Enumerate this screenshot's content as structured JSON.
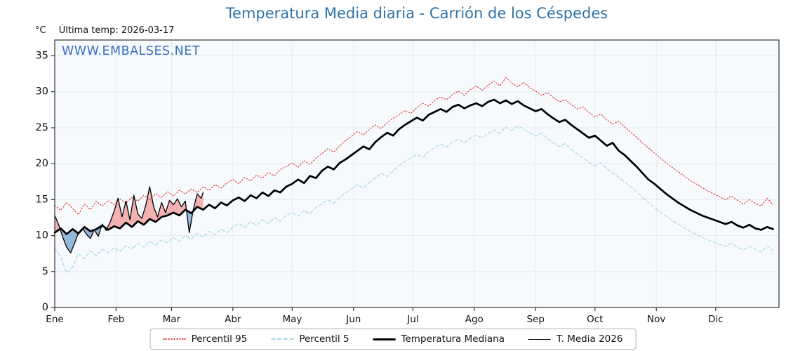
{
  "header": {
    "title": "Temperatura Media diaria - Carrión de los Céspedes",
    "y_unit": "°C",
    "last_temp_label": "Última temp: 2026-03-17",
    "watermark": "WWW.EMBALSES.NET"
  },
  "legend": {
    "items": [
      {
        "label": "Percentil 95",
        "series": "p95"
      },
      {
        "label": "Percentil 5",
        "series": "p5"
      },
      {
        "label": "Temperatura Mediana",
        "series": "median"
      },
      {
        "label": "T. Media 2026",
        "series": "t2026"
      }
    ]
  },
  "chart_data": {
    "type": "line",
    "title": "Temperatura Media diaria - Carrión de los Céspedes",
    "ylabel": "°C",
    "grid": true,
    "legend_position": "bottom",
    "colors": {
      "title": "#2e74a8",
      "watermark": "#3a6fc0",
      "plot_bg": "#f7fafc",
      "grid": "#e3ebf1",
      "axis": "#333333",
      "text": "#111111",
      "fill_above": "#f2a3a3",
      "fill_below": "#82abd4"
    },
    "x_axis": {
      "domain": [
        1,
        367
      ],
      "tick_labels": [
        "Ene",
        "Feb",
        "Mar",
        "Abr",
        "May",
        "Jun",
        "Jul",
        "Ago",
        "Sep",
        "Oct",
        "Nov",
        "Dic"
      ],
      "tick_days": [
        1,
        32,
        60,
        91,
        121,
        152,
        182,
        213,
        244,
        274,
        305,
        335
      ]
    },
    "y_axis": {
      "domain": [
        0,
        37.2
      ],
      "ticks": [
        0,
        5,
        10,
        15,
        20,
        25,
        30,
        35
      ],
      "unit": "°C"
    },
    "sample_days": [
      1,
      4,
      7,
      10,
      13,
      16,
      19,
      22,
      25,
      28,
      31,
      34,
      37,
      40,
      43,
      46,
      49,
      52,
      55,
      58,
      61,
      64,
      67,
      70,
      73,
      76,
      79,
      82,
      85,
      88,
      91,
      94,
      97,
      100,
      103,
      106,
      109,
      112,
      115,
      118,
      121,
      124,
      127,
      130,
      133,
      136,
      139,
      142,
      145,
      148,
      151,
      154,
      157,
      160,
      163,
      166,
      169,
      172,
      175,
      178,
      181,
      184,
      187,
      190,
      193,
      196,
      199,
      202,
      205,
      208,
      211,
      214,
      217,
      220,
      223,
      226,
      229,
      232,
      235,
      238,
      241,
      244,
      247,
      250,
      253,
      256,
      259,
      262,
      265,
      268,
      271,
      274,
      277,
      280,
      283,
      286,
      289,
      292,
      295,
      298,
      301,
      304,
      307,
      310,
      313,
      316,
      319,
      322,
      325,
      328,
      331,
      334,
      337,
      340,
      343,
      346,
      349,
      352,
      355,
      358,
      361,
      364
    ],
    "series": [
      {
        "key": "p95",
        "name": "Percentil 95",
        "color": "#dc3434",
        "style": "dotted",
        "width": 1.1,
        "y": [
          14.2,
          13.5,
          14.6,
          13.8,
          12.9,
          14.4,
          13.6,
          14.8,
          14.1,
          14.9,
          14.3,
          15.1,
          14.5,
          15.3,
          14.8,
          15.6,
          15.0,
          15.8,
          15.3,
          16.1,
          15.5,
          16.3,
          15.8,
          16.5,
          16.0,
          16.8,
          16.3,
          17.1,
          16.6,
          17.3,
          17.8,
          17.2,
          18.1,
          17.6,
          18.4,
          18.0,
          18.8,
          18.3,
          19.2,
          19.6,
          20.1,
          19.5,
          20.4,
          19.9,
          20.8,
          21.4,
          22.1,
          21.6,
          22.5,
          23.2,
          23.8,
          24.5,
          24.0,
          24.8,
          25.4,
          24.9,
          25.7,
          26.3,
          26.8,
          27.4,
          27.0,
          27.8,
          28.4,
          28.0,
          28.8,
          29.3,
          28.9,
          29.6,
          30.1,
          29.5,
          30.3,
          30.8,
          30.2,
          30.9,
          31.5,
          30.8,
          32.0,
          31.2,
          30.7,
          31.3,
          30.6,
          30.1,
          29.5,
          29.9,
          29.2,
          28.6,
          28.9,
          28.2,
          27.6,
          27.9,
          27.1,
          26.5,
          26.9,
          26.1,
          25.5,
          25.9,
          25.1,
          24.4,
          23.7,
          22.9,
          22.2,
          21.5,
          20.8,
          20.1,
          19.5,
          18.9,
          18.3,
          17.7,
          17.2,
          16.7,
          16.2,
          15.8,
          15.4,
          15.0,
          15.5,
          14.9,
          14.4,
          15.0,
          14.5,
          14.1,
          15.2,
          14.3
        ]
      },
      {
        "key": "p5",
        "name": "Percentil 5",
        "color": "#a2d6e8",
        "style": "dashed",
        "width": 1.1,
        "y": [
          8.2,
          7.0,
          4.8,
          5.6,
          7.5,
          6.8,
          7.9,
          7.2,
          8.1,
          7.6,
          8.3,
          7.8,
          8.6,
          8.1,
          8.9,
          8.4,
          9.2,
          8.7,
          9.4,
          9.0,
          9.7,
          9.2,
          10.0,
          9.5,
          10.3,
          9.8,
          10.6,
          10.1,
          10.9,
          10.4,
          11.2,
          11.7,
          11.1,
          11.9,
          11.4,
          12.2,
          11.7,
          12.5,
          12.0,
          12.8,
          13.2,
          12.7,
          13.5,
          13.0,
          13.9,
          14.4,
          15.0,
          14.5,
          15.3,
          15.9,
          16.5,
          17.1,
          16.6,
          17.4,
          18.0,
          18.7,
          18.2,
          19.0,
          19.7,
          20.3,
          20.8,
          21.3,
          20.9,
          21.7,
          22.2,
          22.7,
          22.3,
          23.0,
          23.4,
          22.9,
          23.5,
          24.0,
          23.6,
          24.2,
          24.7,
          24.2,
          25.1,
          24.6,
          25.3,
          24.8,
          24.3,
          23.8,
          24.2,
          23.5,
          22.9,
          22.4,
          22.8,
          22.0,
          21.4,
          20.8,
          20.2,
          19.7,
          20.1,
          19.3,
          18.7,
          18.1,
          17.5,
          16.8,
          16.1,
          15.3,
          14.6,
          13.9,
          13.3,
          12.7,
          12.1,
          11.6,
          11.1,
          10.6,
          10.2,
          9.8,
          9.4,
          9.1,
          8.8,
          8.5,
          8.9,
          8.4,
          8.0,
          8.5,
          8.1,
          7.7,
          8.6,
          7.9
        ]
      },
      {
        "key": "median",
        "name": "Temperatura Mediana",
        "color": "#000000",
        "style": "solid",
        "width": 2.7,
        "y": [
          10.4,
          11.0,
          10.2,
          10.9,
          10.3,
          11.2,
          10.6,
          10.9,
          11.4,
          10.8,
          11.3,
          11.0,
          11.8,
          11.2,
          12.0,
          11.5,
          12.3,
          11.9,
          12.6,
          12.8,
          13.2,
          12.8,
          13.6,
          13.1,
          14.0,
          13.6,
          14.3,
          13.8,
          14.6,
          14.2,
          14.9,
          15.3,
          14.8,
          15.6,
          15.2,
          16.0,
          15.5,
          16.3,
          16.0,
          16.8,
          17.2,
          17.8,
          17.3,
          18.3,
          18.0,
          19.0,
          19.6,
          19.2,
          20.1,
          20.6,
          21.2,
          21.8,
          22.4,
          22.0,
          23.0,
          23.7,
          24.3,
          23.9,
          24.8,
          25.4,
          25.9,
          26.4,
          26.0,
          26.8,
          27.2,
          27.6,
          27.2,
          27.9,
          28.2,
          27.7,
          28.1,
          28.4,
          28.0,
          28.6,
          28.9,
          28.4,
          28.8,
          28.3,
          28.7,
          28.1,
          27.7,
          27.3,
          27.6,
          26.9,
          26.3,
          25.8,
          26.1,
          25.4,
          24.8,
          24.2,
          23.6,
          23.9,
          23.2,
          22.5,
          22.9,
          21.8,
          21.2,
          20.4,
          19.6,
          18.7,
          17.8,
          17.2,
          16.5,
          15.8,
          15.2,
          14.6,
          14.1,
          13.6,
          13.2,
          12.8,
          12.5,
          12.2,
          11.9,
          11.6,
          11.9,
          11.4,
          11.1,
          11.5,
          11.0,
          10.8,
          11.2,
          10.9
        ]
      },
      {
        "key": "t2026",
        "name": "T. Media 2026",
        "color": "#000000",
        "style": "solid",
        "width": 1.3,
        "x": [
          1,
          3,
          5,
          7,
          9,
          11,
          13,
          15,
          17,
          19,
          21,
          23,
          25,
          27,
          29,
          31,
          33,
          35,
          37,
          39,
          41,
          43,
          45,
          47,
          49,
          51,
          53,
          55,
          57,
          59,
          61,
          63,
          65,
          67,
          69,
          71,
          73,
          75,
          76
        ],
        "y": [
          12.8,
          11.5,
          9.8,
          8.4,
          7.6,
          8.9,
          10.4,
          11.0,
          10.2,
          9.6,
          10.8,
          9.9,
          11.6,
          10.7,
          11.9,
          13.4,
          15.2,
          12.6,
          14.8,
          12.2,
          15.6,
          13.0,
          12.4,
          14.2,
          16.8,
          14.0,
          12.6,
          14.6,
          13.2,
          14.9,
          14.3,
          15.1,
          14.0,
          14.8,
          10.4,
          13.6,
          15.8,
          15.2,
          16.0
        ]
      }
    ]
  }
}
